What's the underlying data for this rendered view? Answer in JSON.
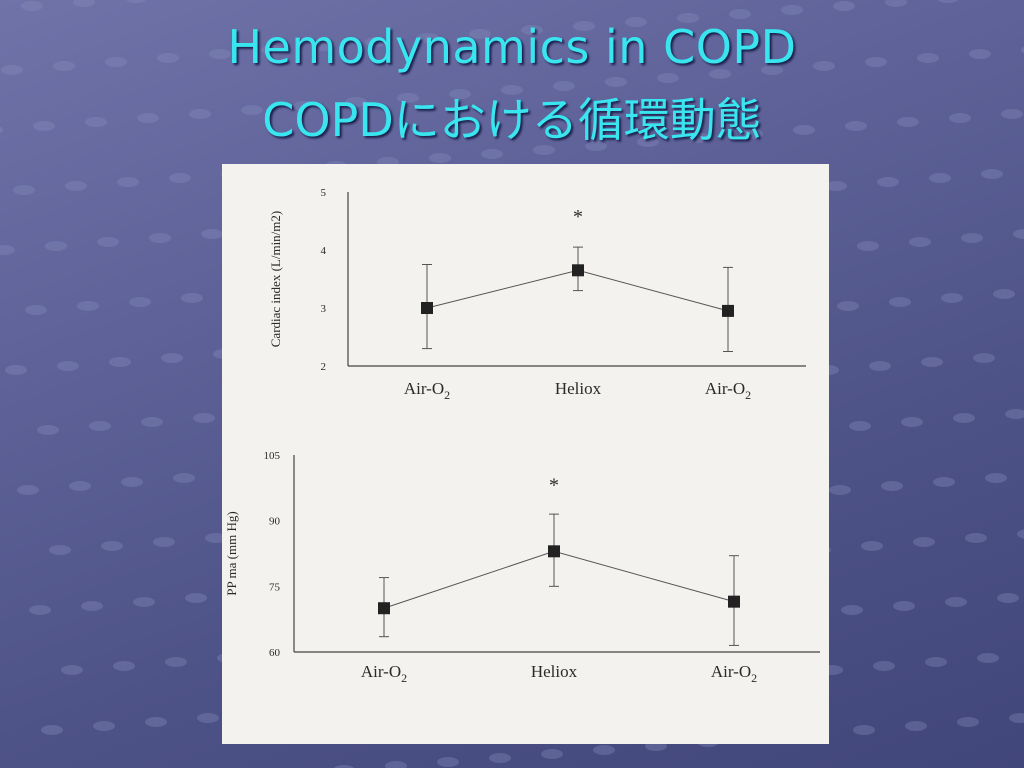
{
  "slide": {
    "title_en": "Hemodynamics in COPD",
    "title_ja": "COPDにおける循環動態"
  },
  "chart_data": [
    {
      "type": "line",
      "ylabel": "Cardiac index (L/min/m2)",
      "ylim": [
        2,
        5
      ],
      "yticks": [
        2,
        3,
        4,
        5
      ],
      "categories": [
        "Air-O2",
        "Heliox",
        "Air-O2"
      ],
      "series": [
        {
          "values": [
            3.0,
            3.65,
            2.95
          ],
          "err_low": [
            2.3,
            3.3,
            2.25
          ],
          "err_high": [
            3.75,
            4.05,
            3.7
          ]
        }
      ],
      "annotations": [
        {
          "text": "*",
          "category_index": 1,
          "y": 4.6
        }
      ]
    },
    {
      "type": "line",
      "ylabel": "PP ma (mm Hg)",
      "ylim": [
        60,
        105
      ],
      "yticks": [
        60,
        75,
        90,
        105
      ],
      "categories": [
        "Air-O2",
        "Heliox",
        "Air-O2"
      ],
      "series": [
        {
          "values": [
            70.0,
            83.0,
            71.5
          ],
          "err_low": [
            63.5,
            75.0,
            61.5
          ],
          "err_high": [
            77.0,
            91.5,
            82.0
          ]
        }
      ],
      "annotations": [
        {
          "text": "*",
          "category_index": 1,
          "y": 98.5
        }
      ]
    }
  ]
}
